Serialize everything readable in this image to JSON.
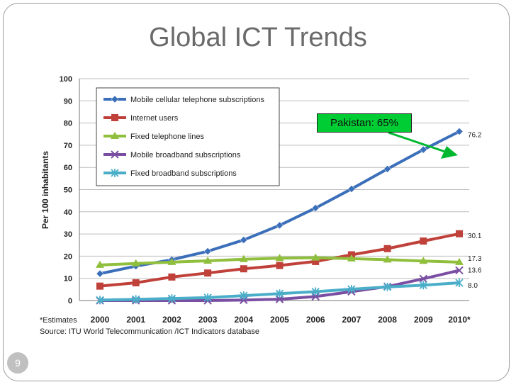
{
  "slide": {
    "title": "Global ICT Trends",
    "callout": "Pakistan: 65%",
    "page_number": "9"
  },
  "chart_data": {
    "type": "line",
    "ylabel": "Per 100 inhabitants",
    "ylim": [
      0,
      100
    ],
    "yticks": [
      0,
      10,
      20,
      30,
      40,
      50,
      60,
      70,
      80,
      90,
      100
    ],
    "categories": [
      "2000",
      "2001",
      "2002",
      "2003",
      "2004",
      "2005",
      "2006",
      "2007",
      "2008",
      "2009",
      "2010*"
    ],
    "series": [
      {
        "name": "Mobile cellular telephone subscriptions",
        "color": "#3b6fba",
        "marker": "diamond",
        "values": [
          12.1,
          15.5,
          18.4,
          22.2,
          27.3,
          33.9,
          41.7,
          50.3,
          59.3,
          68.0,
          76.2
        ],
        "end_label": "76.2"
      },
      {
        "name": "Internet users",
        "color": "#c0403a",
        "marker": "square",
        "values": [
          6.5,
          8.0,
          10.6,
          12.4,
          14.3,
          15.8,
          17.6,
          20.6,
          23.4,
          26.8,
          30.1
        ],
        "end_label": "30.1"
      },
      {
        "name": "Fixed telephone lines",
        "color": "#8fbf3c",
        "marker": "triangle",
        "values": [
          16.0,
          16.7,
          17.3,
          17.9,
          18.6,
          19.1,
          19.3,
          18.9,
          18.4,
          17.8,
          17.3
        ],
        "end_label": "17.3"
      },
      {
        "name": "Mobile broadband subscriptions",
        "color": "#7a4fa3",
        "marker": "x",
        "values": [
          0.0,
          0.0,
          0.0,
          0.0,
          0.2,
          0.6,
          1.8,
          4.0,
          6.3,
          9.8,
          13.6
        ],
        "end_label": "13.6"
      },
      {
        "name": "Fixed broadband subscriptions",
        "color": "#4aaec9",
        "marker": "star",
        "values": [
          0.2,
          0.5,
          0.9,
          1.3,
          2.2,
          3.1,
          4.0,
          5.1,
          6.1,
          6.9,
          8.0
        ],
        "end_label": "8.0"
      }
    ],
    "legend_position": "top-left",
    "grid": true,
    "footnotes": [
      "*Estimates",
      "Source:  ITU World Telecommunication /ICT Indicators database"
    ]
  }
}
